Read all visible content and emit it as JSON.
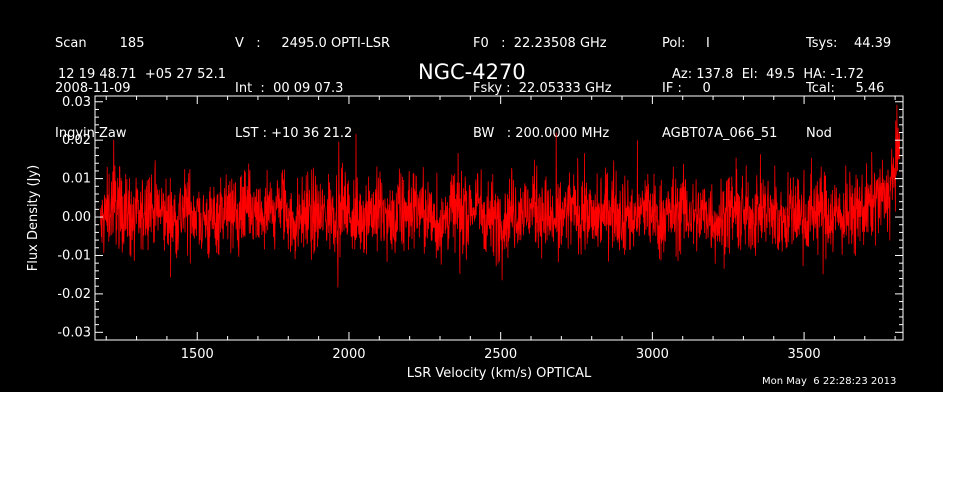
{
  "header": {
    "col1": [
      "Scan        185",
      "2008-11-09",
      "Ingyin Zaw"
    ],
    "col2": [
      "V   :     2495.0 OPTI-LSR",
      "Int  :  00 09 07.3",
      "LST : +10 36 21.2"
    ],
    "col3": [
      "F0   :  22.23508 GHz",
      "Fsky :  22.05333 GHz",
      "BW   : 200.0000 MHz"
    ],
    "col4": [
      "Pol:     I",
      "IF :     0",
      "AGBT07A_066_51"
    ],
    "col5": [
      "Tsys:    44.39",
      "Tcal:     5.46",
      "Nod"
    ],
    "coords": "12 19 48.71  +05 27 52.1",
    "object": "NGC-4270",
    "pointing": "Az: 137.8  El:  49.5  HA: -1.72",
    "timestamp": "Mon May  6 22:28:23 2013"
  },
  "chart_data": {
    "type": "line",
    "title": "NGC-4270",
    "xlabel": "LSR Velocity (km/s) OPTICAL",
    "ylabel": "Flux Density (Jy)",
    "xlim": [
      1163,
      3826
    ],
    "ylim": [
      -0.032,
      0.0315
    ],
    "x_ticks": [
      1500,
      2000,
      2500,
      3000,
      3500
    ],
    "x_tick_labels": [
      "1500",
      "2000",
      "2500",
      "3000",
      "3500"
    ],
    "y_ticks": [
      -0.03,
      -0.02,
      -0.01,
      0.0,
      0.01,
      0.02,
      0.03
    ],
    "y_tick_labels": [
      "-0.03",
      "-0.02",
      "-0.01",
      "0.00",
      "0.01",
      "0.02",
      "0.03"
    ],
    "series": [
      {
        "color": "#ff0000",
        "description_note": "",
        "x": [
          1180,
          1220,
          1260,
          1300,
          1340,
          1380,
          1420,
          1460,
          1500,
          1540,
          1580,
          1620,
          1660,
          1700,
          1740,
          1780,
          1820,
          1860,
          1900,
          1940,
          1980,
          2020,
          2060,
          2100,
          2140,
          2180,
          2220,
          2260,
          2300,
          2340,
          2380,
          2420,
          2460,
          2500,
          2540,
          2580,
          2620,
          2660,
          2700,
          2740,
          2780,
          2820,
          2860,
          2900,
          2940,
          2980,
          3020,
          3060,
          3100,
          3140,
          3180,
          3220,
          3260,
          3300,
          3340,
          3380,
          3420,
          3460,
          3500,
          3540,
          3580,
          3620,
          3660,
          3700,
          3740,
          3780,
          3800,
          3815
        ],
        "y": [
          -0.003,
          0.004,
          0.002,
          -0.002,
          0.003,
          0.001,
          -0.001,
          0.002,
          0.001,
          -0.002,
          0.003,
          0.0,
          0.002,
          -0.001,
          0.001,
          0.003,
          -0.002,
          0.002,
          0.0,
          0.001,
          0.003,
          -0.001,
          0.002,
          0.001,
          -0.002,
          0.001,
          0.003,
          0.0,
          -0.002,
          0.002,
          0.001,
          0.003,
          0.0,
          -0.001,
          0.002,
          0.001,
          0.003,
          -0.001,
          0.0,
          0.002,
          0.001,
          -0.001,
          0.003,
          0.001,
          0.0,
          0.002,
          -0.001,
          0.001,
          0.002,
          0.0,
          0.001,
          -0.001,
          0.002,
          0.0,
          0.001,
          0.002,
          -0.001,
          0.001,
          0.0,
          0.002,
          0.001,
          0.0,
          0.001,
          0.002,
          0.004,
          0.006,
          0.012,
          0.02
        ]
      }
    ],
    "grid": false,
    "legend": "none",
    "colors": {
      "background": "#000000",
      "axes": "#ffffff",
      "series": "#ff0000",
      "page": "#ffffff"
    }
  }
}
